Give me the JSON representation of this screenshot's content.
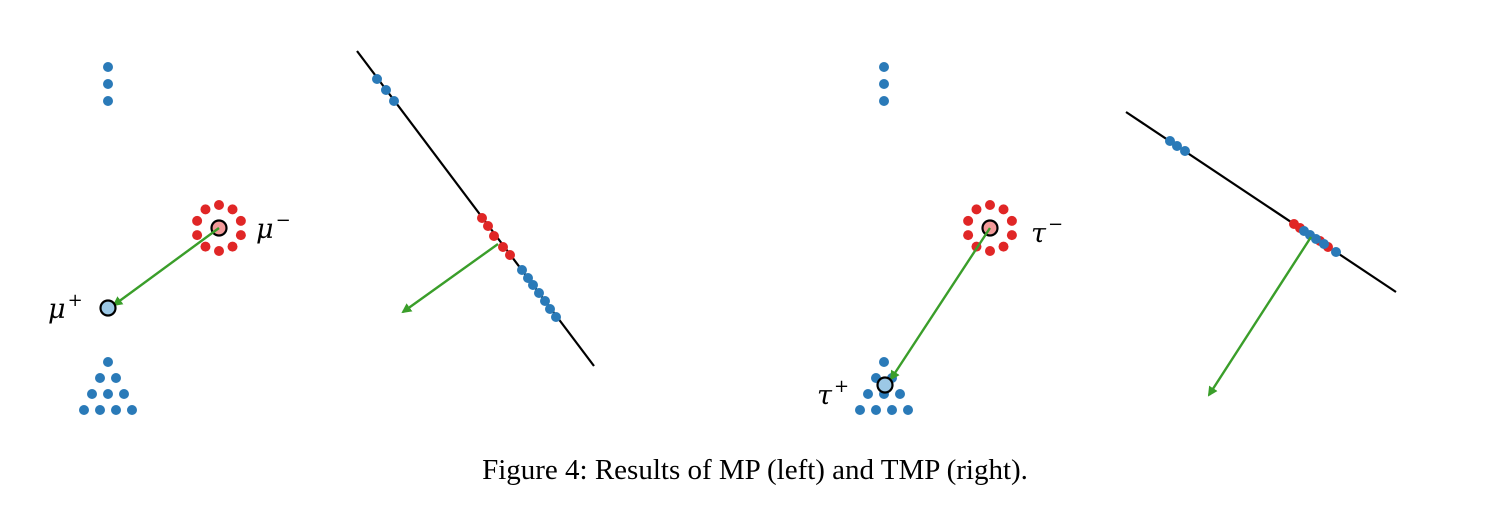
{
  "figure": {
    "caption": "Figure 4: Results of MP (left) and TMP (right).",
    "colors": {
      "blue_point": "#2a7ab8",
      "red_point": "#e02626",
      "particle_plus_fill": "#9cc8e6",
      "particle_minus_fill": "#f39a9a",
      "arrow": "#3a9e2a",
      "line": "#000000"
    },
    "labels": {
      "mp_minus": "μ",
      "mp_minus_sup": "−",
      "mp_plus": "μ",
      "mp_plus_sup": "+",
      "tmp_minus": "τ",
      "tmp_minus_sup": "−",
      "tmp_plus": "τ",
      "tmp_plus_sup": "+"
    }
  }
}
